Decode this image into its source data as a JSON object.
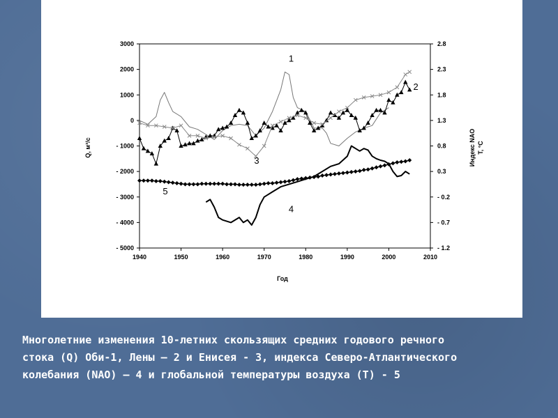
{
  "caption": {
    "line1": "Многолетние изменения 10-летних скользящих средних годового речного",
    "line2": "стока (Q) Оби-1, Лены – 2 и Енисея - 3, индекса Северо-Атлантического",
    "line3": "колебания (NAO) – 4 и глобальной температуры воздуха (T) - 5"
  },
  "colors": {
    "background": "#4f6d96",
    "panel": "#ffffff",
    "caption_text": "#ffffff",
    "line": "#000000",
    "series1": "#777777",
    "series3": "#888888"
  },
  "chart_data": {
    "type": "line",
    "xlabel": "Год",
    "ylabel_left": "Q, м³/с",
    "ylabel_right_1": "Индекс NAO",
    "ylabel_right_2": "T, °C",
    "xlim": [
      1940,
      2010
    ],
    "ylim_left": [
      -5000,
      3000
    ],
    "ylim_right": [
      -1.2,
      2.8
    ],
    "x_ticks": [
      "1940",
      "1950",
      "1960",
      "1970",
      "1980",
      "1990",
      "2000",
      "2010"
    ],
    "y_left_ticks": [
      "3000",
      "2000",
      "1000",
      "0",
      "- 1000",
      "- 2000",
      "- 3000",
      "- 4000",
      "- 5000"
    ],
    "y_right_ticks": [
      "2.8",
      "2.3",
      "1.8",
      "1.3",
      "0.8",
      "0.3",
      "- 0.2",
      "- 0.7",
      "- 1.2"
    ],
    "series": [
      {
        "name": "1",
        "label": "1",
        "axis": "left",
        "marker": "none",
        "x": [
          1940,
          1942,
          1944,
          1945,
          1946,
          1947,
          1948,
          1950,
          1952,
          1954,
          1956,
          1958,
          1960,
          1962,
          1964,
          1966,
          1968,
          1970,
          1972,
          1974,
          1975,
          1976,
          1977,
          1978,
          1980,
          1982,
          1984,
          1985,
          1986,
          1988,
          1990,
          1992,
          1994,
          1996,
          1998,
          2000
        ],
        "values": [
          0,
          -150,
          150,
          800,
          1100,
          700,
          350,
          150,
          -250,
          -350,
          -550,
          -750,
          -400,
          -200,
          -150,
          -200,
          -600,
          -300,
          350,
          1200,
          1900,
          1800,
          900,
          500,
          350,
          -300,
          -300,
          -500,
          -900,
          -1000,
          -700,
          -450,
          -300,
          -200,
          300,
          500
        ]
      },
      {
        "name": "2",
        "label": "2",
        "axis": "left",
        "marker": "triangle",
        "x": [
          1940,
          1941,
          1942,
          1943,
          1944,
          1945,
          1946,
          1947,
          1948,
          1949,
          1950,
          1951,
          1952,
          1953,
          1954,
          1955,
          1956,
          1957,
          1958,
          1959,
          1960,
          1961,
          1962,
          1963,
          1964,
          1965,
          1966,
          1967,
          1968,
          1969,
          1970,
          1971,
          1972,
          1973,
          1974,
          1975,
          1976,
          1977,
          1978,
          1979,
          1980,
          1981,
          1982,
          1983,
          1984,
          1985,
          1986,
          1987,
          1988,
          1989,
          1990,
          1991,
          1992,
          1993,
          1994,
          1995,
          1996,
          1997,
          1998,
          1999,
          2000,
          2001,
          2002,
          2003,
          2004,
          2005
        ],
        "values": [
          -700,
          -1100,
          -1200,
          -1300,
          -1700,
          -1000,
          -800,
          -700,
          -300,
          -400,
          -1000,
          -950,
          -900,
          -900,
          -800,
          -750,
          -650,
          -600,
          -600,
          -350,
          -300,
          -250,
          -100,
          200,
          400,
          300,
          -100,
          -700,
          -600,
          -400,
          -100,
          -250,
          -300,
          -200,
          -400,
          -100,
          0,
          100,
          300,
          400,
          300,
          -100,
          -400,
          -300,
          -200,
          0,
          300,
          200,
          100,
          300,
          400,
          200,
          100,
          -400,
          -300,
          -100,
          200,
          400,
          400,
          300,
          800,
          700,
          1000,
          1100,
          1500,
          1200
        ]
      },
      {
        "name": "3",
        "label": "3",
        "axis": "left",
        "marker": "cross",
        "x": [
          1940,
          1942,
          1944,
          1946,
          1948,
          1950,
          1952,
          1954,
          1956,
          1958,
          1960,
          1962,
          1964,
          1966,
          1968,
          1970,
          1972,
          1974,
          1976,
          1978,
          1980,
          1982,
          1984,
          1986,
          1988,
          1990,
          1992,
          1994,
          1996,
          1998,
          2000,
          2002,
          2004,
          2005
        ],
        "values": [
          -100,
          -200,
          -200,
          -250,
          -300,
          -200,
          -600,
          -600,
          -700,
          -650,
          -600,
          -700,
          -950,
          -1100,
          -1400,
          -1000,
          -200,
          -50,
          100,
          200,
          100,
          -100,
          -150,
          100,
          350,
          500,
          800,
          900,
          950,
          1000,
          1100,
          1300,
          1800,
          1900
        ]
      },
      {
        "name": "4",
        "label": "4",
        "axis": "right",
        "marker": "none",
        "x": [
          1956,
          1957,
          1958,
          1959,
          1960,
          1962,
          1964,
          1965,
          1966,
          1967,
          1968,
          1969,
          1970,
          1972,
          1974,
          1976,
          1978,
          1980,
          1982,
          1984,
          1986,
          1988,
          1990,
          1991,
          1992,
          1993,
          1994,
          1995,
          1996,
          1997,
          1998,
          1999,
          2000,
          2001,
          2002,
          2003,
          2004,
          2005
        ],
        "values": [
          -0.3,
          -0.25,
          -0.4,
          -0.6,
          -0.65,
          -0.7,
          -0.6,
          -0.7,
          -0.65,
          -0.75,
          -0.6,
          -0.35,
          -0.2,
          -0.1,
          0.0,
          0.05,
          0.1,
          0.15,
          0.2,
          0.3,
          0.4,
          0.45,
          0.6,
          0.8,
          0.75,
          0.7,
          0.75,
          0.72,
          0.6,
          0.55,
          0.52,
          0.5,
          0.45,
          0.3,
          0.2,
          0.22,
          0.3,
          0.25
        ]
      },
      {
        "name": "5",
        "label": "5",
        "axis": "right",
        "marker": "diamond",
        "x": [
          1940,
          1941,
          1942,
          1943,
          1944,
          1945,
          1946,
          1947,
          1948,
          1949,
          1950,
          1951,
          1952,
          1953,
          1954,
          1955,
          1956,
          1957,
          1958,
          1959,
          1960,
          1961,
          1962,
          1963,
          1964,
          1965,
          1966,
          1967,
          1968,
          1969,
          1970,
          1971,
          1972,
          1973,
          1974,
          1975,
          1976,
          1977,
          1978,
          1979,
          1980,
          1981,
          1982,
          1983,
          1984,
          1985,
          1986,
          1987,
          1988,
          1989,
          1990,
          1991,
          1992,
          1993,
          1994,
          1995,
          1996,
          1997,
          1998,
          1999,
          2000,
          2001,
          2002,
          2003,
          2004,
          2005
        ],
        "values": [
          0.12,
          0.12,
          0.12,
          0.12,
          0.11,
          0.11,
          0.1,
          0.09,
          0.08,
          0.07,
          0.06,
          0.05,
          0.05,
          0.05,
          0.05,
          0.06,
          0.06,
          0.06,
          0.06,
          0.06,
          0.06,
          0.05,
          0.05,
          0.05,
          0.04,
          0.04,
          0.04,
          0.04,
          0.04,
          0.05,
          0.06,
          0.07,
          0.07,
          0.08,
          0.09,
          0.1,
          0.11,
          0.13,
          0.15,
          0.16,
          0.17,
          0.18,
          0.19,
          0.2,
          0.22,
          0.23,
          0.24,
          0.25,
          0.26,
          0.27,
          0.28,
          0.29,
          0.3,
          0.31,
          0.33,
          0.34,
          0.36,
          0.38,
          0.4,
          0.42,
          0.44,
          0.46,
          0.48,
          0.49,
          0.5,
          0.52
        ]
      }
    ],
    "series_labels_positions": "1 near 1975 peak; 2 at right end; 3 near 1968 trough; 4 near 1976 below; 5 near 1946"
  }
}
